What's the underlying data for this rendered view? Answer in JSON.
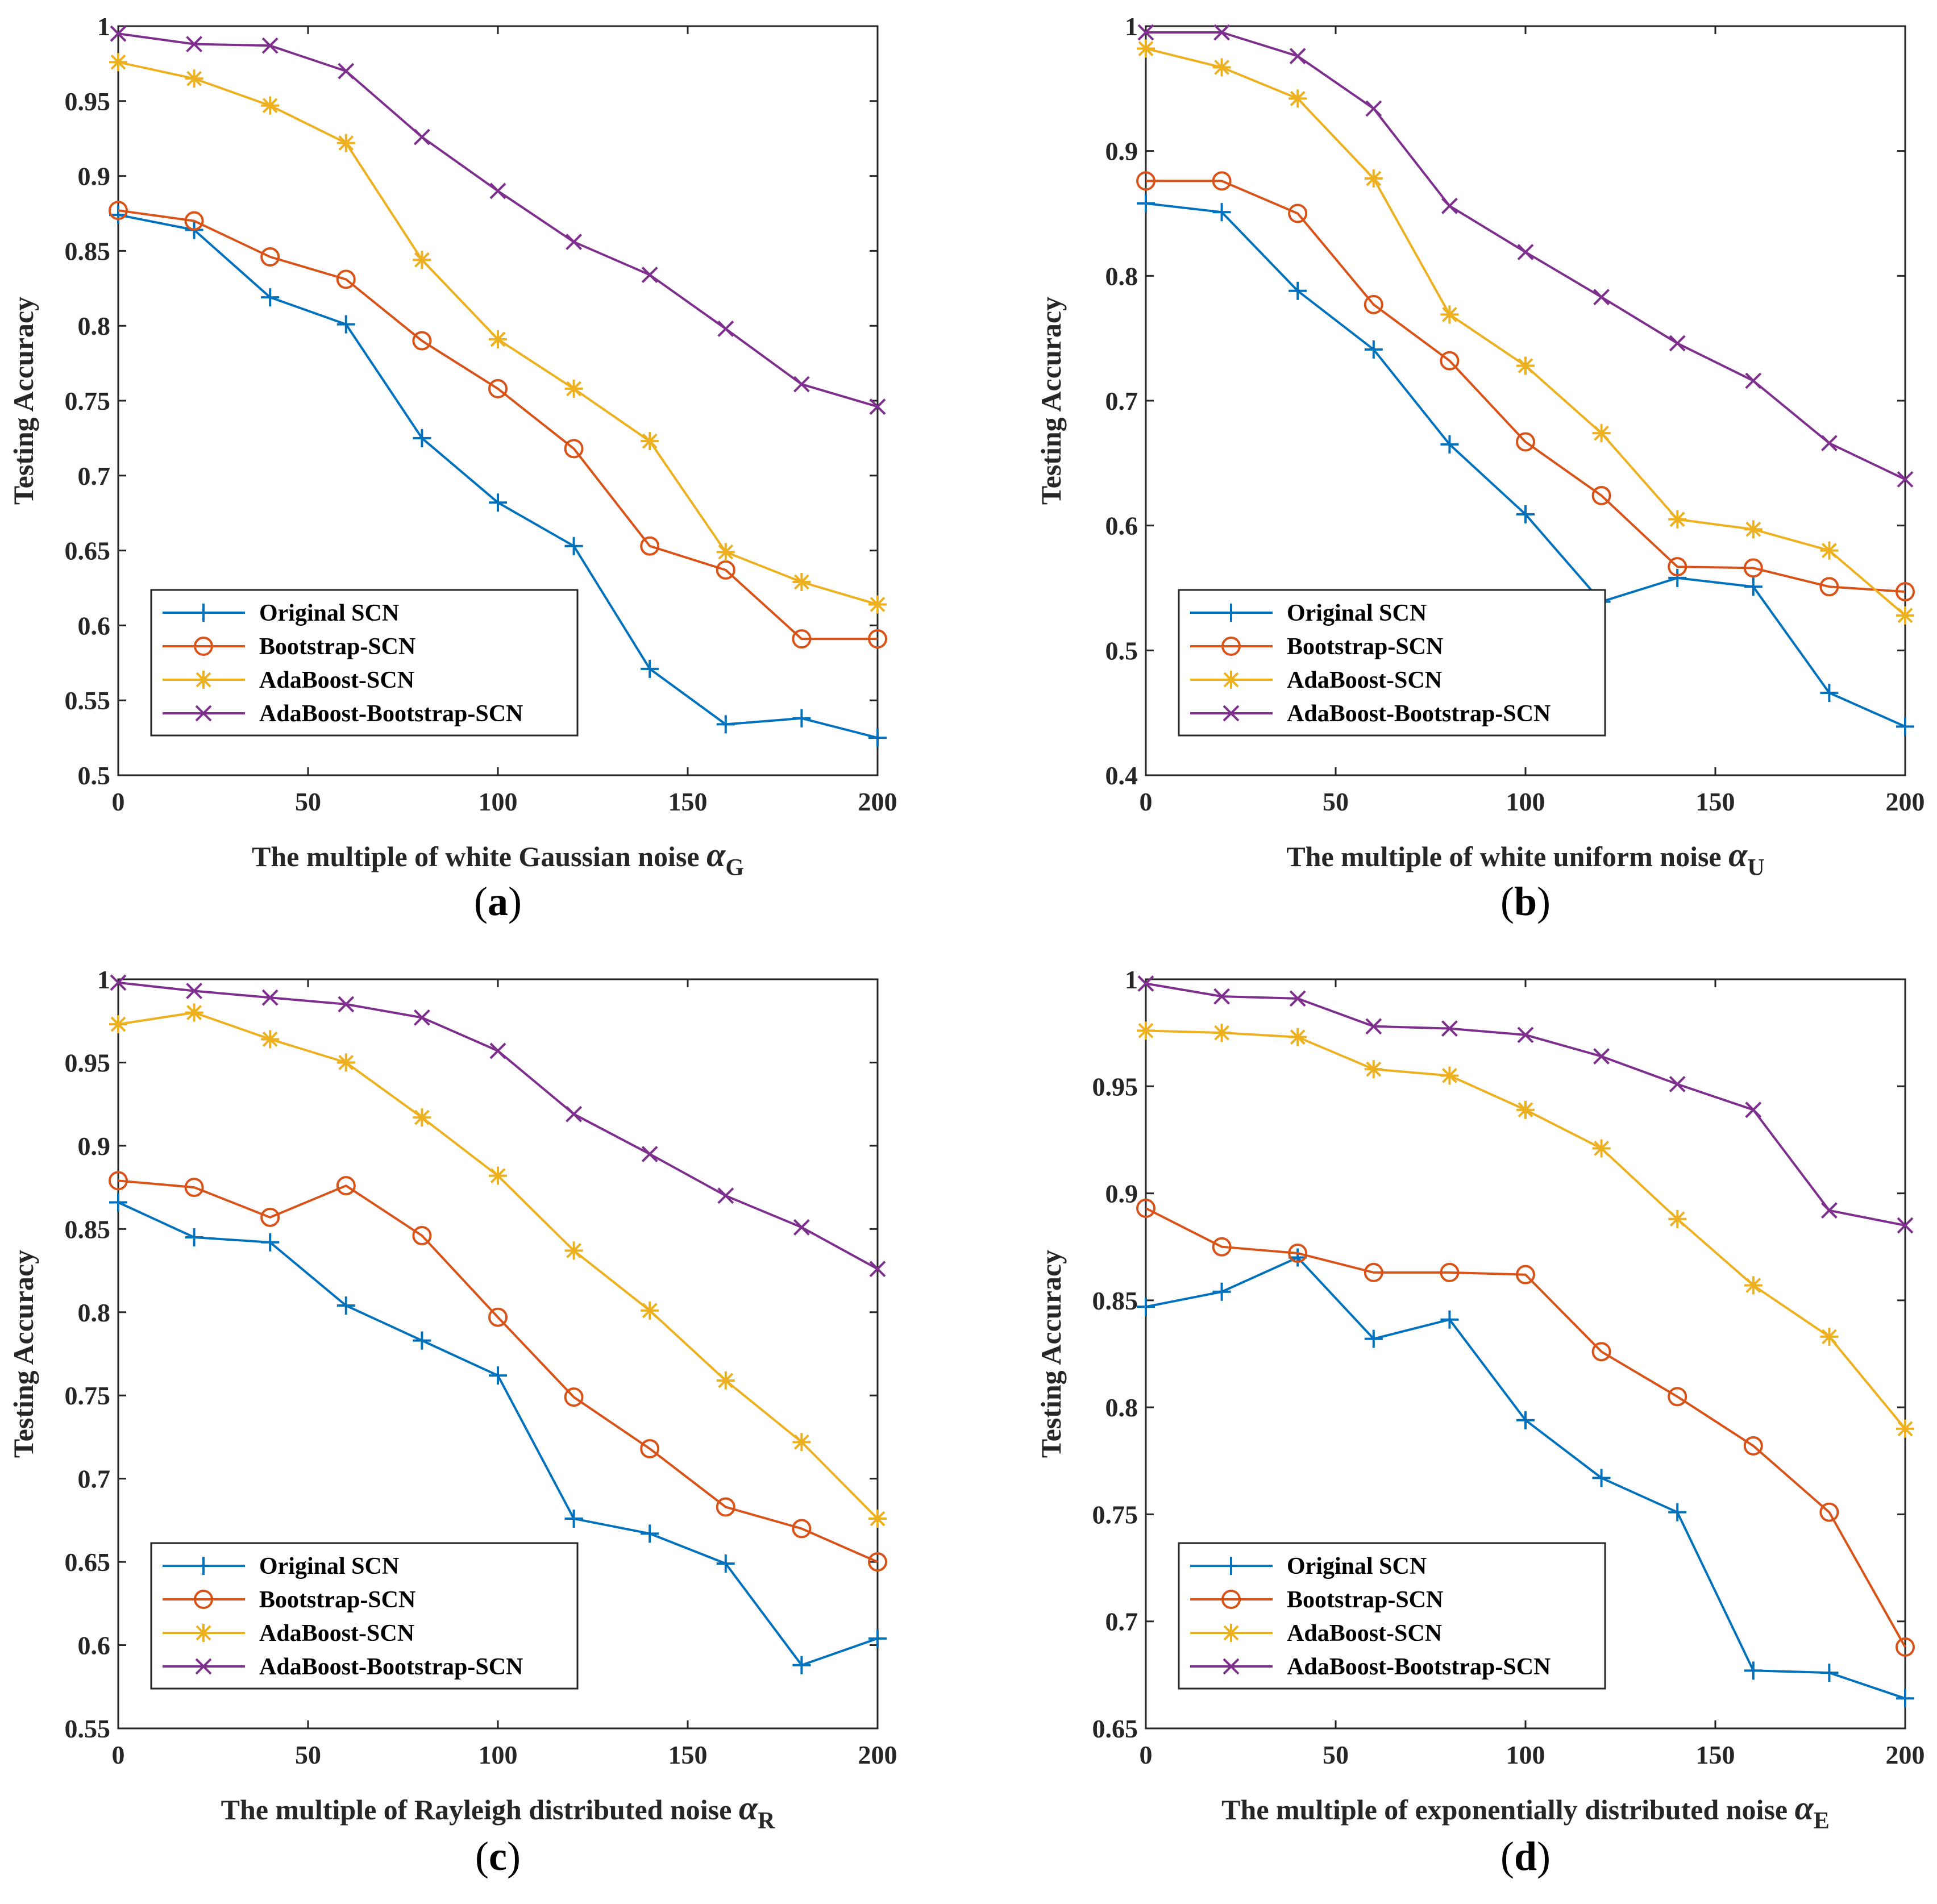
{
  "colors": {
    "original": "#0072BD",
    "bootstrap": "#D95319",
    "adaboost": "#EDB120",
    "adaboost_bootstrap": "#7E2F8E",
    "axis": "#262626"
  },
  "chart_data": [
    {
      "type": "line",
      "caption_letter": "a",
      "xlabel": "The multiple of white Gaussian noise",
      "xlabel_symbol": "α",
      "xlabel_subscript": "G",
      "ylabel": "Testing Accuracy",
      "xlim": [
        0,
        200
      ],
      "ylim": [
        0.5,
        1
      ],
      "xticks": [
        0,
        50,
        100,
        150,
        200
      ],
      "yticks": [
        0.5,
        0.55,
        0.6,
        0.65,
        0.7,
        0.75,
        0.8,
        0.85,
        0.9,
        0.95,
        1
      ],
      "ytick_labels": [
        "0.5",
        "0.55",
        "0.6",
        "0.65",
        "0.7",
        "0.75",
        "0.8",
        "0.85",
        "0.9",
        "0.95",
        "1"
      ],
      "legend_position": "bottom-left",
      "x": [
        0,
        20,
        40,
        60,
        80,
        100,
        120,
        140,
        160,
        180,
        200
      ],
      "series": [
        {
          "name": "Original SCN",
          "marker": "plus",
          "values": [
            0.874,
            0.864,
            0.819,
            0.801,
            0.725,
            0.682,
            0.653,
            0.571,
            0.534,
            0.538,
            0.525
          ]
        },
        {
          "name": "Bootstrap-SCN",
          "marker": "circle",
          "values": [
            0.877,
            0.87,
            0.846,
            0.831,
            0.79,
            0.758,
            0.718,
            0.653,
            0.637,
            0.591,
            0.591
          ]
        },
        {
          "name": "AdaBoost-SCN",
          "marker": "star",
          "values": [
            0.976,
            0.965,
            0.947,
            0.922,
            0.844,
            0.791,
            0.758,
            0.723,
            0.649,
            0.629,
            0.614
          ]
        },
        {
          "name": "AdaBoost-Bootstrap-SCN",
          "marker": "x",
          "values": [
            0.995,
            0.988,
            0.987,
            0.97,
            0.926,
            0.89,
            0.856,
            0.834,
            0.798,
            0.761,
            0.746
          ]
        }
      ]
    },
    {
      "type": "line",
      "caption_letter": "b",
      "xlabel": "The multiple of white uniform noise",
      "xlabel_symbol": "α",
      "xlabel_subscript": "U",
      "ylabel": "Testing Accuracy",
      "xlim": [
        0,
        200
      ],
      "ylim": [
        0.4,
        1
      ],
      "xticks": [
        0,
        50,
        100,
        150,
        200
      ],
      "yticks": [
        0.4,
        0.5,
        0.6,
        0.7,
        0.8,
        0.9,
        1
      ],
      "ytick_labels": [
        "0.4",
        "0.5",
        "0.6",
        "0.7",
        "0.8",
        "0.9",
        "1"
      ],
      "legend_position": "bottom-left",
      "x": [
        0,
        20,
        40,
        60,
        80,
        100,
        120,
        140,
        160,
        180,
        200
      ],
      "series": [
        {
          "name": "Original SCN",
          "marker": "plus",
          "values": [
            0.858,
            0.851,
            0.788,
            0.741,
            0.665,
            0.609,
            0.539,
            0.558,
            0.551,
            0.466,
            0.439
          ]
        },
        {
          "name": "Bootstrap-SCN",
          "marker": "circle",
          "values": [
            0.876,
            0.876,
            0.85,
            0.777,
            0.732,
            0.667,
            0.624,
            0.567,
            0.566,
            0.551,
            0.547
          ]
        },
        {
          "name": "AdaBoost-SCN",
          "marker": "star",
          "values": [
            0.982,
            0.967,
            0.942,
            0.878,
            0.769,
            0.728,
            0.674,
            0.605,
            0.597,
            0.58,
            0.528
          ]
        },
        {
          "name": "AdaBoost-Bootstrap-SCN",
          "marker": "x",
          "values": [
            0.995,
            0.995,
            0.976,
            0.934,
            0.856,
            0.819,
            0.783,
            0.746,
            0.716,
            0.666,
            0.637
          ]
        }
      ]
    },
    {
      "type": "line",
      "caption_letter": "c",
      "xlabel": "The multiple of Rayleigh distributed noise",
      "xlabel_symbol": "α",
      "xlabel_subscript": "R",
      "ylabel": "Testing Accuracy",
      "xlim": [
        0,
        200
      ],
      "ylim": [
        0.55,
        1
      ],
      "xticks": [
        0,
        50,
        100,
        150,
        200
      ],
      "yticks": [
        0.55,
        0.6,
        0.65,
        0.7,
        0.75,
        0.8,
        0.85,
        0.9,
        0.95,
        1
      ],
      "ytick_labels": [
        "0.55",
        "0.6",
        "0.65",
        "0.7",
        "0.75",
        "0.8",
        "0.85",
        "0.9",
        "0.95",
        "1"
      ],
      "legend_position": "bottom-left",
      "x": [
        0,
        20,
        40,
        60,
        80,
        100,
        120,
        140,
        160,
        180,
        200
      ],
      "series": [
        {
          "name": "Original SCN",
          "marker": "plus",
          "values": [
            0.866,
            0.845,
            0.842,
            0.804,
            0.783,
            0.762,
            0.676,
            0.667,
            0.649,
            0.588,
            0.604
          ]
        },
        {
          "name": "Bootstrap-SCN",
          "marker": "circle",
          "values": [
            0.879,
            0.875,
            0.857,
            0.876,
            0.846,
            0.797,
            0.749,
            0.718,
            0.683,
            0.67,
            0.65
          ]
        },
        {
          "name": "AdaBoost-SCN",
          "marker": "star",
          "values": [
            0.973,
            0.98,
            0.964,
            0.95,
            0.917,
            0.882,
            0.837,
            0.801,
            0.759,
            0.722,
            0.676
          ]
        },
        {
          "name": "AdaBoost-Bootstrap-SCN",
          "marker": "x",
          "values": [
            0.998,
            0.993,
            0.989,
            0.985,
            0.977,
            0.957,
            0.919,
            0.895,
            0.87,
            0.851,
            0.826
          ]
        }
      ]
    },
    {
      "type": "line",
      "caption_letter": "d",
      "xlabel": "The multiple of exponentially distributed noise",
      "xlabel_symbol": "α",
      "xlabel_subscript": "E",
      "ylabel": "Testing Accuracy",
      "xlim": [
        0,
        200
      ],
      "ylim": [
        0.65,
        1
      ],
      "xticks": [
        0,
        50,
        100,
        150,
        200
      ],
      "yticks": [
        0.65,
        0.7,
        0.75,
        0.8,
        0.85,
        0.9,
        0.95,
        1
      ],
      "ytick_labels": [
        "0.65",
        "0.7",
        "0.75",
        "0.8",
        "0.85",
        "0.9",
        "0.95",
        "1"
      ],
      "legend_position": "bottom-left",
      "x": [
        0,
        20,
        40,
        60,
        80,
        100,
        120,
        140,
        160,
        180,
        200
      ],
      "series": [
        {
          "name": "Original SCN",
          "marker": "plus",
          "values": [
            0.847,
            0.854,
            0.87,
            0.832,
            0.841,
            0.794,
            0.767,
            0.751,
            0.677,
            0.676,
            0.664
          ]
        },
        {
          "name": "Bootstrap-SCN",
          "marker": "circle",
          "values": [
            0.893,
            0.875,
            0.872,
            0.863,
            0.863,
            0.862,
            0.826,
            0.805,
            0.782,
            0.751,
            0.688
          ]
        },
        {
          "name": "AdaBoost-SCN",
          "marker": "star",
          "values": [
            0.976,
            0.975,
            0.973,
            0.958,
            0.955,
            0.939,
            0.921,
            0.888,
            0.857,
            0.833,
            0.79
          ]
        },
        {
          "name": "AdaBoost-Bootstrap-SCN",
          "marker": "x",
          "values": [
            0.998,
            0.992,
            0.991,
            0.978,
            0.977,
            0.974,
            0.964,
            0.951,
            0.939,
            0.892,
            0.885
          ]
        }
      ]
    }
  ]
}
